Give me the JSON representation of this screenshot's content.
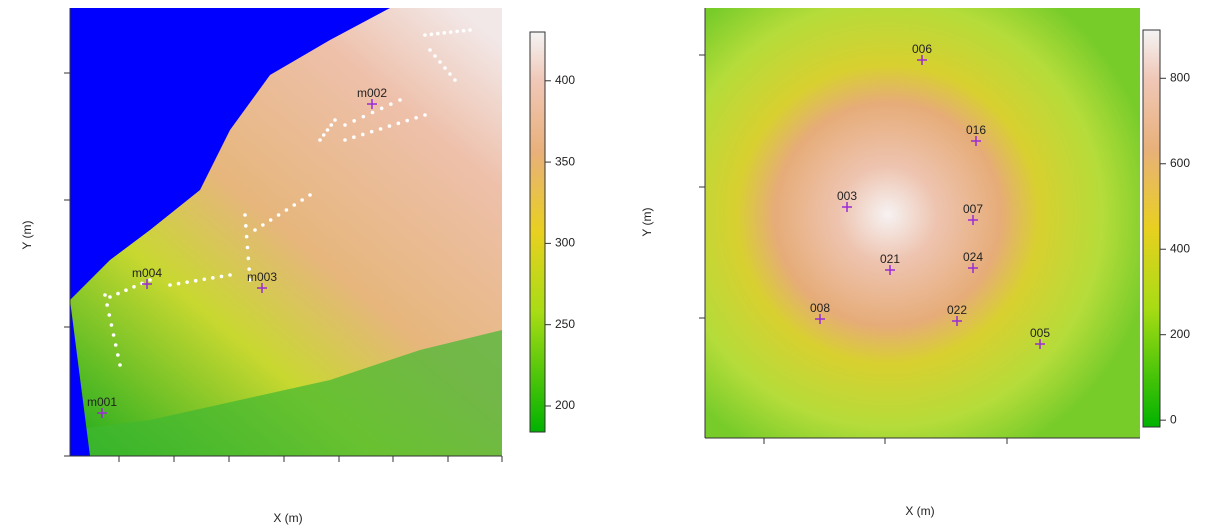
{
  "panels": [
    {
      "x_label": "X (m)",
      "y_label": "Y (m)",
      "colorbar": {
        "lim": [
          184,
          430
        ],
        "ticks": [
          200,
          250,
          300,
          350,
          400
        ]
      },
      "points": [
        {
          "label": "m001"
        },
        {
          "label": "m002"
        },
        {
          "label": "m003"
        },
        {
          "label": "m004"
        }
      ]
    },
    {
      "x_label": "X (m)",
      "y_label": "Y (m)",
      "colorbar": {
        "lim": [
          -16,
          913
        ],
        "ticks": [
          0,
          200,
          400,
          600,
          800
        ]
      },
      "points": [
        {
          "label": "006"
        },
        {
          "label": "016"
        },
        {
          "label": "003"
        },
        {
          "label": "007"
        },
        {
          "label": "021"
        },
        {
          "label": "024"
        },
        {
          "label": "008"
        },
        {
          "label": "022"
        },
        {
          "label": "005"
        }
      ]
    }
  ]
}
